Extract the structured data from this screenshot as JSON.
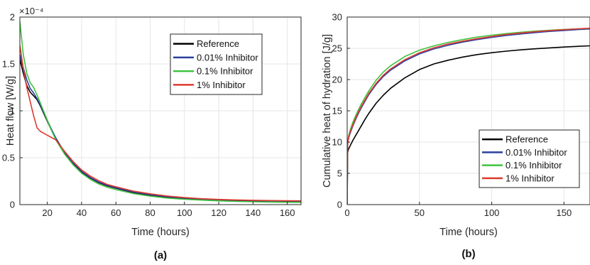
{
  "chart_data": [
    {
      "type": "line",
      "panel_label": "(a)",
      "xlabel": "Time (hours)",
      "ylabel": "Heat flow [W/g]",
      "y_multiplier": "×10⁻⁴",
      "xlim": [
        4,
        168
      ],
      "ylim": [
        0,
        2
      ],
      "xticks": [
        20,
        40,
        60,
        80,
        100,
        120,
        140,
        160
      ],
      "yticks": [
        0,
        0.5,
        1,
        1.5,
        2
      ],
      "xtick_labels": [
        "20",
        "40",
        "60",
        "80",
        "100",
        "120",
        "140",
        "160"
      ],
      "ytick_labels": [
        "0",
        "0.5",
        "1",
        "1.5",
        "2"
      ],
      "grid": true,
      "legend_position": "top-right",
      "series": [
        {
          "name": "Reference",
          "color": "#000000",
          "x": [
            4,
            6,
            8,
            10,
            12,
            14,
            16,
            18,
            20,
            22,
            25,
            30,
            35,
            40,
            45,
            50,
            55,
            60,
            70,
            80,
            90,
            100,
            110,
            120,
            130,
            140,
            150,
            160,
            168
          ],
          "y": [
            1.55,
            1.4,
            1.27,
            1.2,
            1.16,
            1.12,
            1.05,
            0.97,
            0.89,
            0.81,
            0.7,
            0.55,
            0.44,
            0.35,
            0.285,
            0.235,
            0.2,
            0.175,
            0.13,
            0.1,
            0.08,
            0.065,
            0.055,
            0.048,
            0.043,
            0.04,
            0.038,
            0.036,
            0.035
          ]
        },
        {
          "name": "0.01% Inhibitor",
          "color": "#2b3f9e",
          "x": [
            4,
            6,
            8,
            10,
            12,
            14,
            16,
            18,
            20,
            22,
            25,
            30,
            35,
            40,
            45,
            50,
            55,
            60,
            70,
            80,
            90,
            100,
            110,
            120,
            130,
            140,
            150,
            160,
            168
          ],
          "y": [
            1.6,
            1.46,
            1.33,
            1.24,
            1.19,
            1.13,
            1.06,
            0.98,
            0.9,
            0.82,
            0.71,
            0.56,
            0.445,
            0.355,
            0.29,
            0.24,
            0.205,
            0.18,
            0.135,
            0.105,
            0.085,
            0.07,
            0.06,
            0.052,
            0.047,
            0.043,
            0.04,
            0.038,
            0.037
          ]
        },
        {
          "name": "0.1% Inhibitor",
          "color": "#3fc33f",
          "x": [
            4,
            6,
            8,
            10,
            12,
            14,
            16,
            18,
            20,
            22,
            25,
            30,
            35,
            40,
            45,
            50,
            55,
            60,
            70,
            80,
            90,
            100,
            110,
            120,
            130,
            140,
            150,
            160,
            168
          ],
          "y": [
            1.95,
            1.6,
            1.4,
            1.3,
            1.25,
            1.17,
            1.08,
            0.99,
            0.9,
            0.81,
            0.69,
            0.54,
            0.425,
            0.335,
            0.27,
            0.22,
            0.185,
            0.16,
            0.118,
            0.09,
            0.07,
            0.057,
            0.048,
            0.04,
            0.034,
            0.03,
            0.027,
            0.025,
            0.024
          ]
        },
        {
          "name": "1% Inhibitor",
          "color": "#e03a2f",
          "x": [
            4,
            6,
            8,
            10,
            12,
            14,
            16,
            18,
            20,
            22,
            25,
            30,
            35,
            40,
            45,
            50,
            55,
            60,
            70,
            80,
            90,
            100,
            110,
            120,
            130,
            140,
            150,
            160,
            168
          ],
          "y": [
            1.7,
            1.45,
            1.25,
            1.1,
            0.95,
            0.82,
            0.78,
            0.76,
            0.74,
            0.72,
            0.69,
            0.57,
            0.46,
            0.37,
            0.305,
            0.255,
            0.215,
            0.19,
            0.145,
            0.115,
            0.092,
            0.075,
            0.063,
            0.055,
            0.05,
            0.046,
            0.043,
            0.041,
            0.04
          ]
        }
      ]
    },
    {
      "type": "line",
      "panel_label": "(b)",
      "xlabel": "Time (hours)",
      "ylabel": "Cumulative heat of hydration [J/g]",
      "xlim": [
        0,
        168
      ],
      "ylim": [
        0,
        30
      ],
      "xticks": [
        0,
        50,
        100,
        150
      ],
      "yticks": [
        0,
        5,
        10,
        15,
        20,
        25,
        30
      ],
      "xtick_labels": [
        "0",
        "50",
        "100",
        "150"
      ],
      "ytick_labels": [
        "0",
        "5",
        "10",
        "15",
        "20",
        "25",
        "30"
      ],
      "grid": true,
      "legend_position": "bottom-right",
      "series": [
        {
          "name": "Reference",
          "color": "#000000",
          "x": [
            0,
            0.3,
            0.6,
            1,
            2,
            4,
            6,
            8,
            10,
            12,
            15,
            20,
            25,
            30,
            40,
            50,
            60,
            70,
            80,
            90,
            100,
            110,
            120,
            130,
            140,
            150,
            160,
            168
          ],
          "y": [
            0,
            8.2,
            8.6,
            8.9,
            9.4,
            10.3,
            11.1,
            11.9,
            12.7,
            13.5,
            14.6,
            16.2,
            17.5,
            18.6,
            20.3,
            21.6,
            22.5,
            23.1,
            23.6,
            24.0,
            24.3,
            24.55,
            24.75,
            24.92,
            25.07,
            25.2,
            25.32,
            25.4
          ]
        },
        {
          "name": "0.01% Inhibitor",
          "color": "#2b3f9e",
          "x": [
            0,
            0.3,
            0.6,
            1,
            2,
            4,
            6,
            8,
            10,
            12,
            15,
            20,
            25,
            30,
            40,
            50,
            60,
            70,
            80,
            90,
            100,
            110,
            120,
            130,
            140,
            150,
            160,
            168
          ],
          "y": [
            0,
            9.5,
            10.1,
            10.6,
            11.4,
            12.6,
            13.7,
            14.7,
            15.6,
            16.4,
            17.6,
            19.2,
            20.5,
            21.5,
            23.0,
            24.1,
            24.9,
            25.5,
            26.0,
            26.4,
            26.75,
            27.05,
            27.3,
            27.5,
            27.7,
            27.85,
            28.0,
            28.1
          ]
        },
        {
          "name": "0.1% Inhibitor",
          "color": "#3fc33f",
          "x": [
            0,
            0.3,
            0.6,
            1,
            2,
            4,
            6,
            8,
            10,
            12,
            15,
            20,
            25,
            30,
            40,
            50,
            60,
            70,
            80,
            90,
            100,
            110,
            120,
            130,
            140,
            150,
            160,
            168
          ],
          "y": [
            0,
            9.8,
            10.4,
            11.0,
            11.9,
            13.2,
            14.3,
            15.3,
            16.2,
            17.0,
            18.2,
            19.9,
            21.2,
            22.2,
            23.7,
            24.7,
            25.4,
            25.95,
            26.4,
            26.8,
            27.1,
            27.35,
            27.57,
            27.75,
            27.9,
            28.02,
            28.13,
            28.2
          ]
        },
        {
          "name": "1% Inhibitor",
          "color": "#e03a2f",
          "x": [
            0,
            0.3,
            0.6,
            1,
            2,
            4,
            6,
            8,
            10,
            12,
            15,
            20,
            25,
            30,
            40,
            50,
            60,
            70,
            80,
            90,
            100,
            110,
            120,
            130,
            140,
            150,
            160,
            168
          ],
          "y": [
            0,
            9.6,
            10.2,
            10.8,
            11.6,
            12.8,
            13.9,
            14.9,
            15.8,
            16.6,
            17.8,
            19.4,
            20.7,
            21.7,
            23.2,
            24.3,
            25.1,
            25.7,
            26.15,
            26.55,
            26.9,
            27.2,
            27.45,
            27.65,
            27.83,
            27.98,
            28.12,
            28.22
          ]
        }
      ]
    }
  ]
}
